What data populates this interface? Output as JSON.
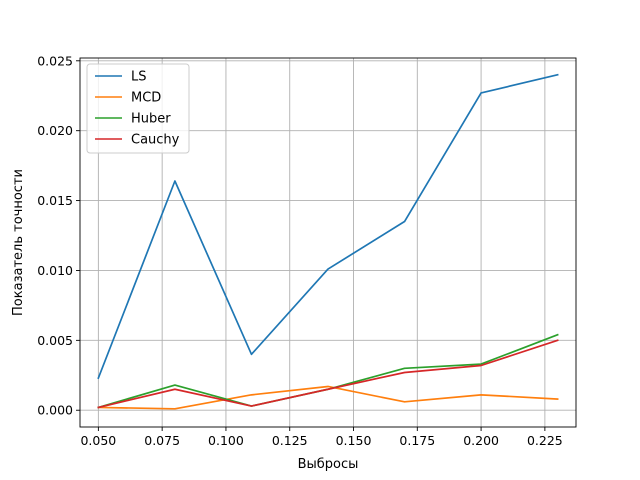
{
  "chart_data": {
    "type": "line",
    "xlabel": "Выбросы",
    "ylabel": "Показатель точности",
    "x": [
      0.05,
      0.08,
      0.11,
      0.14,
      0.17,
      0.2,
      0.23
    ],
    "xlim": [
      0.0428,
      0.2372
    ],
    "ylim": [
      -0.0012,
      0.0252
    ],
    "xticks": [
      0.05,
      0.075,
      0.1,
      0.125,
      0.15,
      0.175,
      0.2,
      0.225
    ],
    "xtick_labels": [
      "0.050",
      "0.075",
      "0.100",
      "0.125",
      "0.150",
      "0.175",
      "0.200",
      "0.225"
    ],
    "yticks": [
      0.0,
      0.005,
      0.01,
      0.015,
      0.02,
      0.025
    ],
    "ytick_labels": [
      "0.000",
      "0.005",
      "0.010",
      "0.015",
      "0.020",
      "0.025"
    ],
    "grid": true,
    "legend_position": "top-left",
    "series": [
      {
        "name": "LS",
        "color": "#1f77b4",
        "values": [
          0.0023,
          0.0164,
          0.004,
          0.0101,
          0.0135,
          0.0227,
          0.024
        ]
      },
      {
        "name": "MCD",
        "color": "#ff7f0e",
        "values": [
          0.0002,
          0.0001,
          0.0011,
          0.0017,
          0.0006,
          0.0011,
          0.0008
        ]
      },
      {
        "name": "Huber",
        "color": "#2ca02c",
        "values": [
          0.0002,
          0.0018,
          0.0003,
          0.0015,
          0.003,
          0.0033,
          0.0054
        ]
      },
      {
        "name": "Cauchy",
        "color": "#d62728",
        "values": [
          0.0002,
          0.0015,
          0.0003,
          0.0015,
          0.0027,
          0.0032,
          0.005
        ]
      }
    ]
  }
}
